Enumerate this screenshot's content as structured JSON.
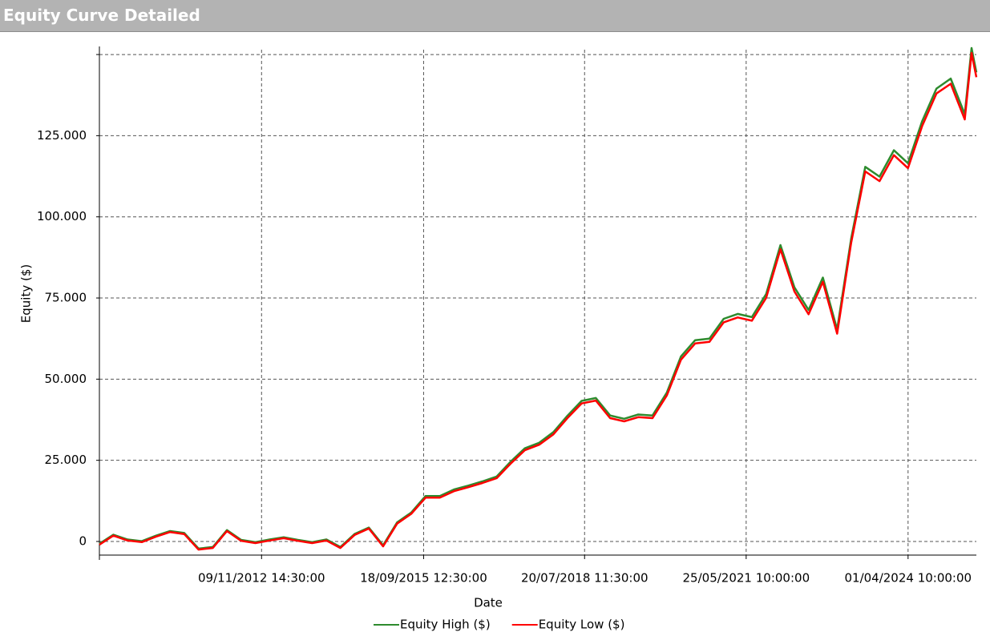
{
  "chart_data": {
    "type": "line",
    "title": "Equity Curve Detailed",
    "x_label": "Date",
    "y_label": "Equity ($)",
    "x": [
      "2010-01-01",
      "2010-04-01",
      "2010-07-01",
      "2010-10-01",
      "2011-01-01",
      "2011-04-01",
      "2011-07-01",
      "2011-10-01",
      "2012-01-01",
      "2012-04-01",
      "2012-07-01",
      "2012-10-01",
      "2013-01-01",
      "2013-04-01",
      "2013-07-01",
      "2013-10-01",
      "2014-01-01",
      "2014-04-01",
      "2014-07-01",
      "2014-10-01",
      "2015-01-01",
      "2015-04-01",
      "2015-07-01",
      "2015-10-01",
      "2016-01-01",
      "2016-04-01",
      "2016-07-01",
      "2016-10-01",
      "2017-01-01",
      "2017-04-01",
      "2017-07-01",
      "2017-10-01",
      "2018-01-01",
      "2018-04-01",
      "2018-07-01",
      "2018-10-01",
      "2019-01-01",
      "2019-04-01",
      "2019-07-01",
      "2019-10-01",
      "2020-01-01",
      "2020-04-01",
      "2020-07-01",
      "2020-10-01",
      "2021-01-01",
      "2021-04-01",
      "2021-07-01",
      "2021-10-01",
      "2022-01-01",
      "2022-04-01",
      "2022-07-01",
      "2022-10-01",
      "2023-01-01",
      "2023-04-01",
      "2023-07-01",
      "2023-10-01",
      "2024-01-01",
      "2024-04-01",
      "2024-07-01",
      "2024-10-01",
      "2025-01-01",
      "2025-04-01",
      "2025-05-15",
      "2025-06-15"
    ],
    "series": [
      {
        "name": "Equity High ($)",
        "color": "#2e8b2e",
        "values": [
          -700,
          2100,
          600,
          100,
          1800,
          3200,
          2600,
          -2200,
          -1700,
          3500,
          500,
          -200,
          600,
          1300,
          500,
          -200,
          600,
          -1700,
          2300,
          4300,
          -1200,
          5900,
          8900,
          14000,
          14000,
          16000,
          17200,
          18500,
          20000,
          24600,
          28700,
          30400,
          33700,
          38700,
          43300,
          44200,
          38800,
          37800,
          39100,
          38800,
          45900,
          57000,
          62000,
          62500,
          68600,
          70100,
          69100,
          76200,
          91300,
          78300,
          71300,
          81300,
          65300,
          93300,
          115400,
          112400,
          120500,
          116500,
          129500,
          139500,
          142600,
          131600,
          152000,
          144500
        ]
      },
      {
        "name": "Equity Low ($)",
        "color": "#ff0000",
        "values": [
          -1000,
          1800,
          300,
          -200,
          1500,
          2900,
          2300,
          -2500,
          -2000,
          3200,
          200,
          -500,
          300,
          1000,
          200,
          -500,
          300,
          -2000,
          2000,
          4000,
          -1500,
          5500,
          8500,
          13500,
          13500,
          15500,
          16700,
          18000,
          19500,
          24000,
          28100,
          29800,
          33000,
          38000,
          42500,
          43400,
          38000,
          37000,
          38300,
          38000,
          45000,
          56000,
          61000,
          61500,
          67500,
          69000,
          68000,
          75000,
          90000,
          77000,
          70000,
          80000,
          64000,
          92000,
          114000,
          111000,
          119000,
          115000,
          128000,
          138000,
          141000,
          130000,
          150500,
          143000
        ]
      }
    ],
    "xlim": [
      "2010-01-01",
      "2025-06-15"
    ],
    "xticks": [
      {
        "value": "2012-11-09T14:30:00",
        "label": "09/11/2012 14:30:00"
      },
      {
        "value": "2015-09-18T12:30:00",
        "label": "18/09/2015 12:30:00"
      },
      {
        "value": "2018-07-20T11:30:00",
        "label": "20/07/2018 11:30:00"
      },
      {
        "value": "2021-05-25T10:00:00",
        "label": "25/05/2021 10:00:00"
      },
      {
        "value": "2024-04-01T10:00:00",
        "label": "01/04/2024 10:00:00"
      }
    ],
    "ylim": [
      -4200,
      151500
    ],
    "yticks": [
      0,
      {
        "value": 25000,
        "label": "25.000"
      },
      {
        "value": 50000,
        "label": "50.000"
      },
      {
        "value": 75000,
        "label": "75.000"
      },
      {
        "value": 100000,
        "label": "100.000"
      },
      {
        "value": 125000,
        "label": "125.000"
      },
      {
        "value": 150000,
        "label": null
      }
    ],
    "grid": true,
    "legend": "bottom"
  }
}
